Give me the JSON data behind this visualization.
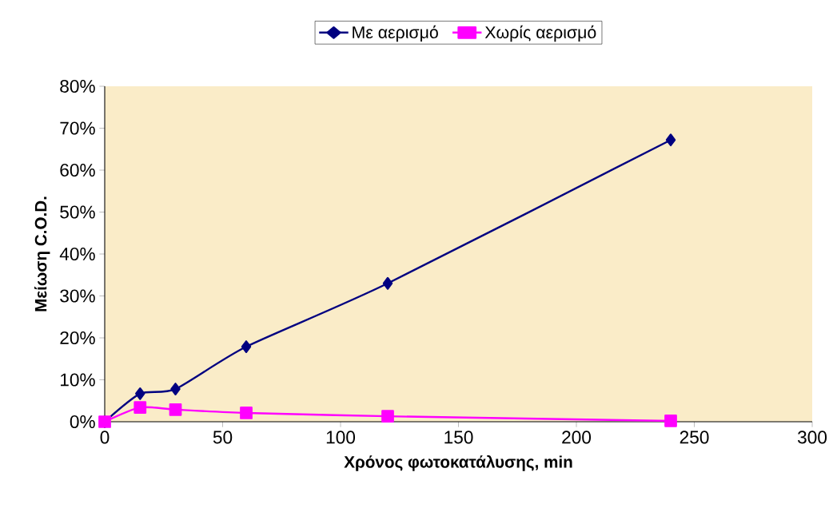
{
  "chart_data": {
    "type": "line",
    "xlabel": "Χρόνος φωτοκατάλυσης, min",
    "ylabel": "Μείωση C.O.D.",
    "x": [
      0,
      15,
      30,
      60,
      120,
      240
    ],
    "series": [
      {
        "name": "Με αερισμό",
        "color": "#000080",
        "marker": "diamond",
        "values": [
          0,
          6.7,
          7.8,
          17.9,
          33,
          67.2
        ]
      },
      {
        "name": "Χωρίς αερισμό",
        "color": "#ff00ff",
        "marker": "square",
        "values": [
          0,
          3.4,
          2.9,
          2.1,
          1.3,
          0.2
        ]
      }
    ],
    "xlim": [
      0,
      300
    ],
    "xticks": [
      0,
      50,
      100,
      150,
      200,
      250,
      300
    ],
    "ylim": [
      0,
      80
    ],
    "yticks": [
      {
        "value": 0,
        "label": "0%"
      },
      {
        "value": 10,
        "label": "10%"
      },
      {
        "value": 20,
        "label": "20%"
      },
      {
        "value": 30,
        "label": "30%"
      },
      {
        "value": 40,
        "label": "40%"
      },
      {
        "value": 50,
        "label": "50%"
      },
      {
        "value": 60,
        "label": "60%"
      },
      {
        "value": 70,
        "label": "70%"
      },
      {
        "value": 80,
        "label": "80%"
      }
    ],
    "grid": false,
    "legend": "top",
    "line_style": "solid"
  }
}
